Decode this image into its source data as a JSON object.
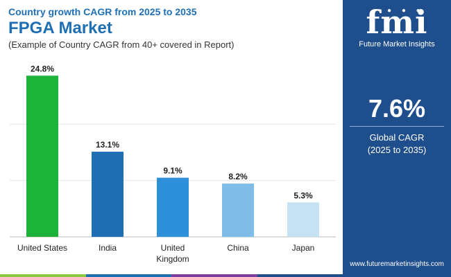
{
  "header": {
    "subtitle_top": "Country growth CAGR from 2025 to 2035",
    "title": "FPGA Market",
    "note": "(Example of Country CAGR from 40+ covered in Report)"
  },
  "chart_data": {
    "type": "bar",
    "categories": [
      "United States",
      "India",
      "United Kingdom",
      "China",
      "Japan"
    ],
    "category_lines": [
      [
        "United States"
      ],
      [
        "India"
      ],
      [
        "United",
        "Kingdom"
      ],
      [
        "China"
      ],
      [
        "Japan"
      ]
    ],
    "values": [
      24.8,
      13.1,
      9.1,
      8.2,
      5.3
    ],
    "data_labels": [
      "24.8%",
      "13.1%",
      "9.1%",
      "8.2%",
      "5.3%"
    ],
    "bar_colors": [
      "#1db33a",
      "#1f6fb5",
      "#2e90d9",
      "#7fbde6",
      "#c5e2f5"
    ],
    "title": "FPGA Market",
    "xlabel": "",
    "ylabel": "",
    "ylim": [
      0,
      26
    ],
    "grid": true
  },
  "panel": {
    "logo_text": "fmi",
    "logo_sub": "Future Market Insights",
    "cagr_value": "7.6%",
    "cagr_label_1": "Global CAGR",
    "cagr_label_2": "(2025 to 2035)",
    "website": "www.futuremarketinsights.com"
  },
  "colors": {
    "title": "#1f6fb5",
    "panel_bg": "#1f4e8c",
    "stripe": [
      "#8dc63f",
      "#1f6fb5",
      "#7b3fa0",
      "#1f4e8c"
    ]
  }
}
